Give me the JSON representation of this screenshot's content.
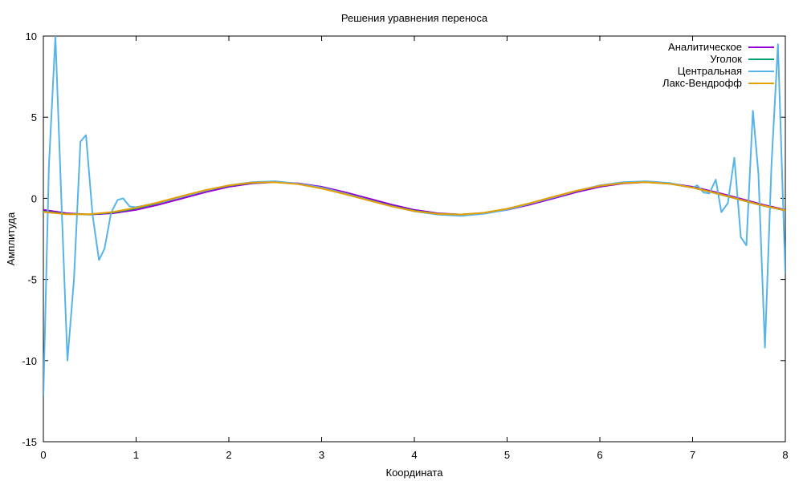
{
  "chart_data": {
    "type": "line",
    "title": "Решения уравнения переноса",
    "xlabel": "Координата",
    "ylabel": "Амплитуда",
    "xlim": [
      0,
      8
    ],
    "ylim": [
      -15,
      10
    ],
    "xticks": [
      0,
      1,
      2,
      3,
      4,
      5,
      6,
      7,
      8
    ],
    "yticks": [
      -15,
      -10,
      -5,
      0,
      5,
      10
    ],
    "grid": false,
    "legend_position": "top-right",
    "series": [
      {
        "name": "Аналитическое",
        "color": "#9400d3",
        "x": [
          0,
          0.25,
          0.5,
          0.75,
          1,
          1.25,
          1.5,
          1.75,
          2,
          2.25,
          2.5,
          2.75,
          3,
          3.25,
          3.5,
          3.75,
          4,
          4.25,
          4.5,
          4.75,
          5,
          5.25,
          5.5,
          5.75,
          6,
          6.25,
          6.5,
          6.75,
          7,
          7.25,
          7.5,
          7.75,
          8
        ],
        "y": [
          -0.71,
          -0.92,
          -1.0,
          -0.92,
          -0.71,
          -0.38,
          0.0,
          0.38,
          0.71,
          0.92,
          1.0,
          0.92,
          0.71,
          0.38,
          0.0,
          -0.38,
          -0.71,
          -0.92,
          -1.0,
          -0.92,
          -0.71,
          -0.38,
          0.0,
          0.38,
          0.71,
          0.92,
          1.0,
          0.92,
          0.71,
          0.38,
          0.0,
          -0.38,
          -0.71
        ]
      },
      {
        "name": "Уголок",
        "color": "#009e73",
        "x": [
          0,
          0.25,
          0.5,
          0.75,
          1,
          1.25,
          1.5,
          1.75,
          2,
          2.25,
          2.5,
          2.75,
          3,
          3.25,
          3.5,
          3.75,
          4,
          4.25,
          4.5,
          4.75,
          5,
          5.25,
          5.5,
          5.75,
          6,
          6.25,
          6.5,
          6.75,
          7,
          7.25,
          7.5,
          7.75,
          8
        ],
        "y": [
          -0.81,
          -0.97,
          -0.99,
          -0.87,
          -0.62,
          -0.27,
          0.11,
          0.48,
          0.78,
          0.96,
          1.0,
          0.89,
          0.64,
          0.29,
          -0.09,
          -0.47,
          -0.77,
          -0.95,
          -1.0,
          -0.9,
          -0.65,
          -0.3,
          0.08,
          0.46,
          0.77,
          0.95,
          1.0,
          0.9,
          0.66,
          0.31,
          -0.07,
          -0.44,
          -0.75
        ]
      },
      {
        "name": "Центральная",
        "color": "#56b4e9",
        "x": [
          0,
          0.06,
          0.13,
          0.2,
          0.26,
          0.33,
          0.4,
          0.46,
          0.53,
          0.6,
          0.66,
          0.73,
          0.8,
          0.86,
          0.93,
          1.0,
          1.25,
          1.5,
          1.75,
          2,
          2.25,
          2.5,
          2.75,
          3,
          3.25,
          3.5,
          3.75,
          4,
          4.25,
          4.5,
          4.75,
          5,
          5.25,
          5.5,
          5.75,
          6,
          6.25,
          6.5,
          6.75,
          7,
          7.05,
          7.12,
          7.18,
          7.25,
          7.31,
          7.38,
          7.45,
          7.52,
          7.58,
          7.65,
          7.71,
          7.78,
          7.85,
          7.92,
          8.0
        ],
        "y": [
          -12.2,
          2.0,
          10.0,
          -1.0,
          -10.0,
          -5.0,
          3.5,
          3.9,
          -1.0,
          -3.8,
          -3.1,
          -0.9,
          -0.1,
          0.0,
          -0.5,
          -0.55,
          -0.25,
          0.1,
          0.48,
          0.8,
          1.0,
          1.05,
          0.9,
          0.66,
          0.3,
          -0.1,
          -0.48,
          -0.8,
          -1.0,
          -1.08,
          -0.95,
          -0.7,
          -0.32,
          0.06,
          0.46,
          0.8,
          1.0,
          1.05,
          0.95,
          0.65,
          0.8,
          0.35,
          0.3,
          1.15,
          -0.85,
          -0.3,
          2.5,
          -2.4,
          -2.9,
          5.4,
          1.5,
          -9.2,
          2.0,
          9.5,
          -4.7
        ]
      },
      {
        "name": "Лакс-Вендрофф",
        "color": "#e69f00",
        "x": [
          0,
          0.25,
          0.5,
          0.75,
          1,
          1.25,
          1.5,
          1.75,
          2,
          2.25,
          2.5,
          2.75,
          3,
          3.25,
          3.5,
          3.75,
          4,
          4.25,
          4.5,
          4.75,
          5,
          5.25,
          5.5,
          5.75,
          6,
          6.25,
          6.5,
          6.75,
          7,
          7.25,
          7.5,
          7.75,
          8
        ],
        "y": [
          -0.84,
          -0.98,
          -0.98,
          -0.84,
          -0.58,
          -0.23,
          0.15,
          0.51,
          0.8,
          0.97,
          0.99,
          0.87,
          0.61,
          0.26,
          -0.12,
          -0.49,
          -0.79,
          -0.96,
          -1.0,
          -0.89,
          -0.64,
          -0.29,
          0.1,
          0.47,
          0.77,
          0.95,
          1.0,
          0.9,
          0.66,
          0.32,
          -0.06,
          -0.43,
          -0.74
        ]
      }
    ]
  }
}
